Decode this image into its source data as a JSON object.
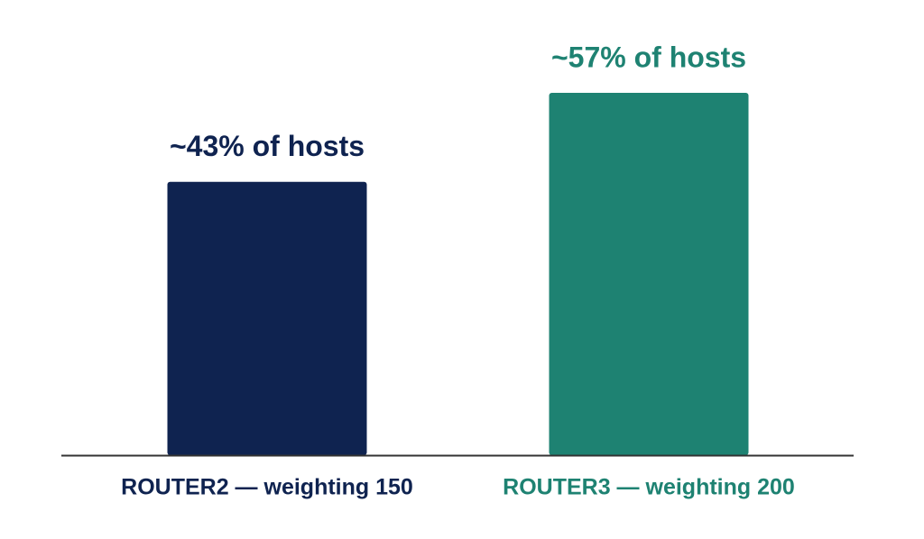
{
  "chart_data": {
    "type": "bar",
    "categories": [
      "ROUTER2 — weighting 150",
      "ROUTER3 — weighting 200"
    ],
    "values": [
      43,
      57
    ],
    "value_labels": [
      "~43% of hosts",
      "~57% of hosts"
    ],
    "colors": [
      "#0f2350",
      "#1e8272"
    ]
  }
}
